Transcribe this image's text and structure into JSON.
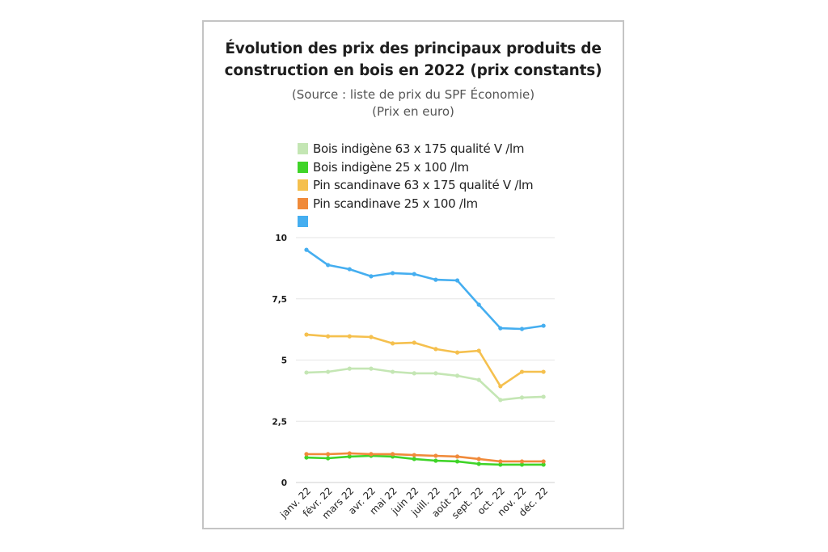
{
  "chart_data": {
    "type": "line",
    "title": "Évolution des prix des principaux produits de construction en bois en 2022 (prix constants)",
    "title_lines": [
      "Évolution des prix des principaux produits de",
      "construction en bois en 2022 (prix constants)"
    ],
    "subtitle_lines": [
      "(Source : liste de prix du SPF Économie)",
      "(Prix en euro)"
    ],
    "xlabel": "",
    "ylabel": "",
    "ylim": [
      0,
      10
    ],
    "yticks": [
      0,
      2.5,
      5,
      7.5,
      10
    ],
    "ytick_labels": [
      "0",
      "2,5",
      "5",
      "7,5",
      "10"
    ],
    "grid": true,
    "legend_position": "top",
    "categories": [
      "janv. 22",
      "févr. 22",
      "mars 22",
      "avr. 22",
      "mai 22",
      "juin 22",
      "juill. 22",
      "août 22",
      "sept. 22",
      "oct. 22",
      "nov. 22",
      "déc. 22"
    ],
    "series": [
      {
        "name": "Bois indigène 63 x 175 qualité V /lm",
        "color": "#c4e6b4",
        "values": [
          4.49,
          4.52,
          4.65,
          4.65,
          4.52,
          4.46,
          4.46,
          4.36,
          4.19,
          3.37,
          3.47,
          3.5
        ]
      },
      {
        "name": "Bois indigène 25 x 100 /lm",
        "color": "#3fd428",
        "values": [
          1.02,
          0.99,
          1.06,
          1.09,
          1.06,
          0.96,
          0.89,
          0.86,
          0.76,
          0.73,
          0.73,
          0.73
        ]
      },
      {
        "name": "Pin scandinave 63 x 175 qualité V /lm",
        "color": "#f5c04e",
        "values": [
          6.04,
          5.97,
          5.97,
          5.94,
          5.68,
          5.71,
          5.45,
          5.31,
          5.38,
          3.93,
          4.52,
          4.52
        ]
      },
      {
        "name": "Pin scandinave 25 x 100 /lm",
        "color": "#f08a3a",
        "values": [
          1.16,
          1.16,
          1.19,
          1.16,
          1.16,
          1.12,
          1.09,
          1.06,
          0.96,
          0.86,
          0.86,
          0.86
        ]
      },
      {
        "name": "",
        "color": "#45aef0",
        "values": [
          9.5,
          8.88,
          8.71,
          8.42,
          8.55,
          8.51,
          8.28,
          8.25,
          7.26,
          6.3,
          6.27,
          6.4
        ]
      }
    ]
  }
}
